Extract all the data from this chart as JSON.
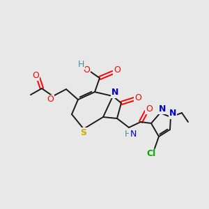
{
  "bg_color": "#e8e8e8",
  "bond_color": "#1a1a1a",
  "atom_colors": {
    "O": "#ff0000",
    "N": "#0000cc",
    "S": "#ccaa00",
    "Cl": "#00aa00",
    "H_teal": "#4a9090",
    "C": "#1a1a1a"
  },
  "figsize": [
    3.0,
    3.0
  ],
  "dpi": 100
}
